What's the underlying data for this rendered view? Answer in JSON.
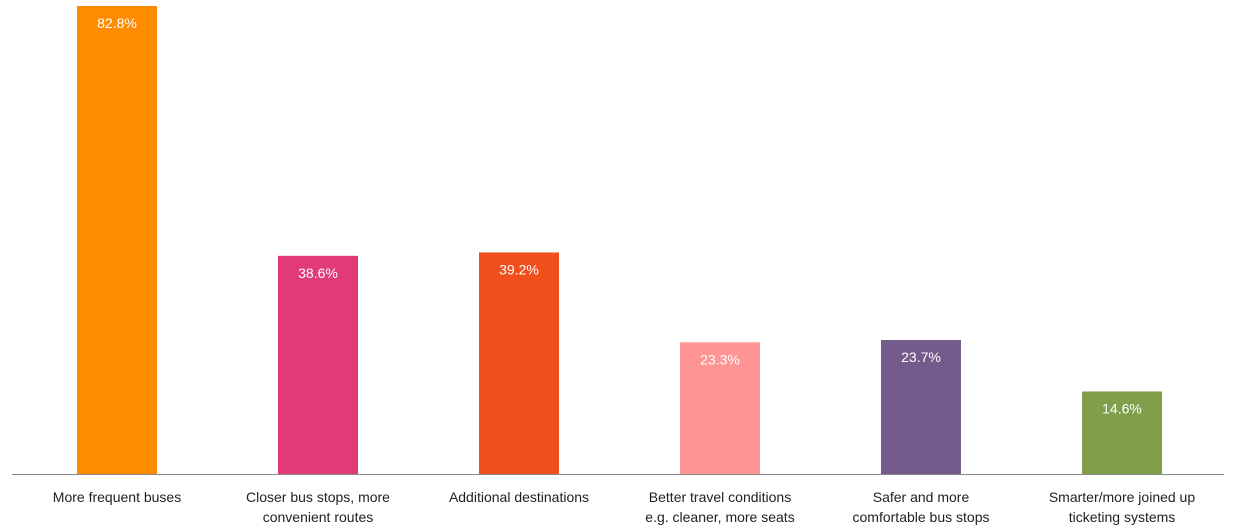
{
  "chart_data": {
    "type": "bar",
    "title": "",
    "xlabel": "",
    "ylabel": "",
    "ylim": [
      0,
      82.8
    ],
    "grid": false,
    "legend": "none",
    "categories": [
      [
        "More frequent buses"
      ],
      [
        "Closer bus stops, more",
        "convenient routes"
      ],
      [
        "Additional destinations"
      ],
      [
        "Better travel conditions",
        "e.g. cleaner, more seats"
      ],
      [
        "Safer and more",
        "comfortable bus stops"
      ],
      [
        "Smarter/more joined up",
        "ticketing systems"
      ]
    ],
    "values": [
      82.8,
      38.6,
      39.2,
      23.3,
      23.7,
      14.6
    ],
    "labels": [
      "82.8%",
      "38.6%",
      "39.2%",
      "23.3%",
      "23.7%",
      "14.6%"
    ],
    "colors": [
      "#FF8B00",
      "#E03A78",
      "#F04E1C",
      "#FF9494",
      "#745B8B",
      "#7F9F4A"
    ],
    "axis_color": "#888888"
  }
}
